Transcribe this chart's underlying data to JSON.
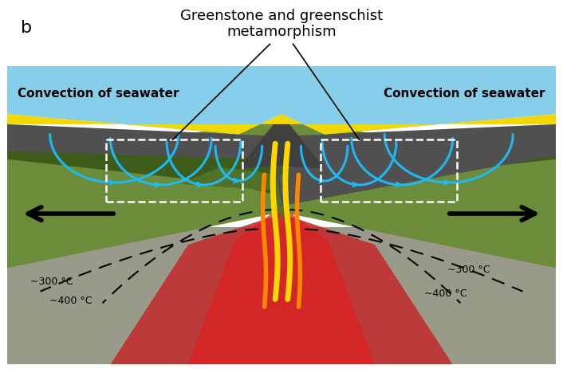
{
  "title": "b",
  "annotation_title": "Greenstone and greenschist\nmetamorphism",
  "label_left": "Convection of seawater",
  "label_right": "Convection of seawater",
  "temp_300_left": "~300 °C",
  "temp_400_left": "~400 °C",
  "temp_300_right": "~300 °C",
  "temp_400_right": "~400 °C",
  "bg_color": "#ffffff",
  "sky_color": "#87ceeb",
  "yellow_color": "#f0d800",
  "dark_gray_color": "#505050",
  "green_light_color": "#6b8c3a",
  "green_dark_color": "#3d5c1a",
  "green_mid_color": "#4e7228",
  "gray_bottom_color": "#9a9a8a",
  "red_zone_color": "#c03030",
  "red_zone_center": "#8b0000",
  "lava_yellow": "#ffd700",
  "lava_orange": "#ff8800",
  "lava_red": "#dd2200",
  "blue_arc_color": "#20b8f0",
  "white_box_color": "#ffffff"
}
